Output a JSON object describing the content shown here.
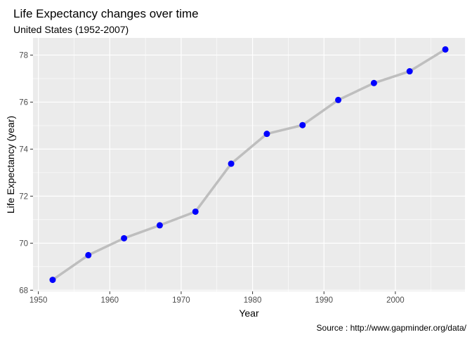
{
  "chart_data": {
    "type": "line",
    "title": "Life Expectancy changes over time",
    "subtitle": "United States (1952-2007)",
    "xlabel": "Year",
    "ylabel": "Life Expectancy (year)",
    "caption": "Source : http://www.gapminder.org/data/",
    "x": [
      1952,
      1957,
      1962,
      1967,
      1972,
      1977,
      1982,
      1987,
      1992,
      1997,
      2002,
      2007
    ],
    "series": [
      {
        "values": [
          68.44,
          69.49,
          70.21,
          70.76,
          71.34,
          73.38,
          74.65,
          75.02,
          76.09,
          76.81,
          77.31,
          78.24
        ]
      }
    ],
    "xlim": [
      1949.25,
      2009.75
    ],
    "ylim": [
      67.95,
      78.73
    ],
    "x_ticks": [
      "1950",
      "1960",
      "1970",
      "1980",
      "1990",
      "2000"
    ],
    "y_ticks": [
      "68",
      "70",
      "72",
      "74",
      "76",
      "78"
    ],
    "grid": true,
    "colors": {
      "panel_background": "#ebebeb",
      "grid": "#ffffff",
      "line": "#bebebe",
      "point": "#0000ff"
    }
  }
}
